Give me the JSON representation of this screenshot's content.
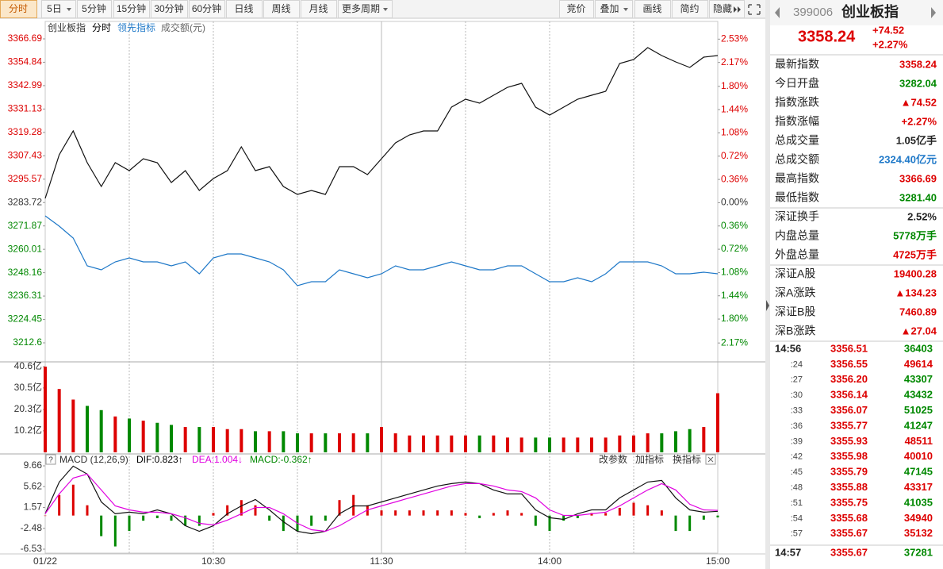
{
  "toolbar": {
    "left": [
      "分时",
      "5日",
      "5分钟",
      "15分钟",
      "30分钟",
      "60分钟",
      "日线",
      "周线",
      "月线",
      "更多周期"
    ],
    "right": [
      "竞价",
      "叠加",
      "画线",
      "简约",
      "隐藏"
    ]
  },
  "chart_header": {
    "period": "分时"
  },
  "chart_data": [
    {
      "type": "line",
      "series": [
        {
          "name": "创业板指",
          "color": "#111111",
          "values": [
            3285.83,
            3307.95,
            3320.02,
            3303.93,
            3291.86,
            3303.93,
            3299.91,
            3305.94,
            3303.93,
            3293.87,
            3299.91,
            3289.85,
            3295.89,
            3299.91,
            3311.98,
            3299.91,
            3301.92,
            3291.86,
            3287.84,
            3289.85,
            3287.84,
            3301.92,
            3301.92,
            3297.9,
            3305.94,
            3313.99,
            3318.01,
            3320.02,
            3320.02,
            3332.09,
            3336.12,
            3334.1,
            3338.13,
            3342.15,
            3344.16,
            3332.09,
            3328.07,
            3332.09,
            3336.12,
            3338.13,
            3340.14,
            3354.22,
            3356.23,
            3362.26,
            3358.24,
            3355.02,
            3352.21,
            3357.44,
            3358.24
          ]
        },
        {
          "name": "领先指标",
          "color": "#1e78c8",
          "values": [
            3276.98,
            3271.75,
            3265.71,
            3251.63,
            3249.62,
            3253.64,
            3255.66,
            3253.64,
            3253.64,
            3251.63,
            3253.64,
            3247.61,
            3255.66,
            3257.67,
            3257.67,
            3255.66,
            3253.64,
            3249.62,
            3241.57,
            3243.59,
            3243.59,
            3249.62,
            3247.61,
            3245.6,
            3247.61,
            3251.63,
            3249.62,
            3249.62,
            3251.63,
            3253.64,
            3251.63,
            3249.62,
            3249.62,
            3251.63,
            3251.63,
            3247.61,
            3243.59,
            3243.59,
            3245.6,
            3243.59,
            3247.61,
            3253.64,
            3253.64,
            3253.64,
            3251.63,
            3247.61,
            3247.61,
            3248.41,
            3247.61
          ]
        }
      ],
      "ylim": [
        3203.35,
        3369.5
      ],
      "yticks": [
        3366.69,
        3354.84,
        3342.99,
        3331.13,
        3319.28,
        3307.43,
        3295.57,
        3283.72,
        3271.87,
        3260.01,
        3248.16,
        3236.31,
        3224.45,
        3212.6
      ],
      "y2lim": [
        -2.45,
        2.62
      ],
      "y2ticks": [
        {
          "value": 2.53,
          "label": "2.53%"
        },
        {
          "value": 2.17,
          "label": "2.17%"
        },
        {
          "value": 1.8,
          "label": "1.80%"
        },
        {
          "value": 1.44,
          "label": "1.44%"
        },
        {
          "value": 1.08,
          "label": "1.08%"
        },
        {
          "value": 0.72,
          "label": "0.72%"
        },
        {
          "value": 0.36,
          "label": "0.36%"
        },
        {
          "value": 0.0,
          "label": "0.00%"
        },
        {
          "value": -0.36,
          "label": "0.36%"
        },
        {
          "value": -0.72,
          "label": "0.72%"
        },
        {
          "value": -1.08,
          "label": "1.08%"
        },
        {
          "value": -1.44,
          "label": "1.44%"
        },
        {
          "value": -1.8,
          "label": "1.80%"
        },
        {
          "value": -2.17,
          "label": "2.17%"
        }
      ],
      "up_color": "#dd0000",
      "down_color": "#008800"
    },
    {
      "type": "bar",
      "title": "成交额(元)",
      "values": [
        40.6,
        30,
        25,
        22,
        20,
        17,
        16,
        15,
        14,
        13,
        12,
        12,
        12,
        11,
        11,
        10,
        10,
        10,
        9,
        9,
        9,
        9,
        9,
        9,
        12,
        9,
        8,
        8,
        8,
        8,
        8,
        8,
        8,
        7,
        7,
        7,
        7,
        7,
        7,
        7,
        7,
        8,
        8,
        9,
        9,
        10,
        11,
        12,
        28
      ],
      "ylim": [
        0,
        42.1
      ],
      "yticks": [
        {
          "value": 40.6,
          "label": "40.6亿"
        },
        {
          "value": 30.5,
          "label": "30.5亿"
        },
        {
          "value": 20.3,
          "label": "20.3亿"
        },
        {
          "value": 10.2,
          "label": "10.2亿"
        }
      ],
      "up_color": "#dd0000",
      "down_color": "#008800"
    },
    {
      "type": "macd",
      "title": "MACD (12,26,9)",
      "categories": [
        "01/22",
        null,
        null,
        null,
        null,
        null,
        null,
        null,
        null,
        null,
        null,
        null,
        "10:30",
        null,
        null,
        null,
        null,
        null,
        null,
        null,
        null,
        null,
        null,
        null,
        "11:30",
        null,
        null,
        null,
        null,
        null,
        null,
        null,
        null,
        null,
        null,
        null,
        "14:00",
        null,
        null,
        null,
        null,
        null,
        null,
        null,
        null,
        null,
        null,
        null,
        "15:00"
      ],
      "series": [
        {
          "label": "DIF:0.823↑",
          "color": "#111111",
          "values": [
            0.34,
            6.51,
            9.6,
            8.06,
            2.65,
            0.34,
            0.65,
            0.34,
            1.11,
            0.34,
            -1.98,
            -3.06,
            -1.98,
            0.34,
            1.88,
            3.12,
            1.11,
            -1.2,
            -3.06,
            -3.52,
            -3.06,
            0.34,
            1.88,
            1.88,
            2.65,
            3.43,
            4.2,
            4.97,
            5.74,
            6.2,
            6.51,
            6.2,
            4.97,
            4.2,
            4.2,
            1.11,
            -0.43,
            -0.74,
            0.34,
            1.11,
            1.11,
            3.43,
            4.97,
            6.51,
            6.82,
            3.43,
            1.11,
            0.65,
            0.823
          ]
        },
        {
          "label": "DEA:1.004↓",
          "color": "#e000e0",
          "values": [
            0.34,
            4.2,
            7.28,
            8.06,
            4.97,
            1.88,
            1.11,
            0.65,
            0.65,
            0.34,
            -0.43,
            -1.51,
            -1.82,
            -0.89,
            0.34,
            1.57,
            1.57,
            0.34,
            -1.51,
            -2.75,
            -3.06,
            -1.98,
            -0.43,
            1.11,
            1.88,
            2.65,
            3.43,
            4.2,
            4.97,
            5.74,
            6.2,
            6.2,
            5.74,
            4.97,
            4.66,
            3.43,
            1.11,
            0.03,
            0.03,
            0.34,
            0.65,
            1.88,
            3.43,
            4.97,
            6.2,
            4.97,
            2.19,
            1.11,
            1.004
          ]
        },
        {
          "label": "MACD:-0.362↑",
          "color": "#008800",
          "values": [
            0,
            4,
            6,
            2,
            -4,
            -6,
            -3,
            -1,
            -0.5,
            -1,
            -2,
            -2,
            0.5,
            2,
            3,
            2,
            -1,
            -3,
            -3,
            -2,
            -1,
            3,
            4,
            2,
            1,
            1,
            1,
            1,
            1,
            1,
            0.5,
            -0.5,
            0.5,
            1,
            0.5,
            -2,
            -3,
            -1,
            -0.5,
            0.5,
            0.5,
            1.5,
            2.5,
            2,
            1,
            -3,
            -3,
            -0.8,
            -0.362
          ]
        }
      ],
      "ylim": [
        -7.3,
        11.51
      ],
      "yticks": [
        9.66,
        5.62,
        1.57,
        -2.48,
        -6.53
      ],
      "up_color": "#dd0000",
      "down_color": "#008800",
      "buttons": [
        "改参数",
        "加指标",
        "换指标"
      ]
    }
  ],
  "quote": {
    "code": "399006",
    "name": "创业板指",
    "price": "3358.24",
    "change": "+74.52",
    "change_pct": "+2.27%"
  },
  "stats": [
    {
      "label": "最新指数",
      "value": "3358.24",
      "color": "#dd0000"
    },
    {
      "label": "今日开盘",
      "value": "3282.04",
      "color": "#008800"
    },
    {
      "label": "指数涨跌",
      "value": "▲74.52",
      "color": "#dd0000"
    },
    {
      "label": "指数涨幅",
      "value": "+2.27%",
      "color": "#dd0000"
    },
    {
      "label": "总成交量",
      "value": "1.05亿手",
      "color": "#222222"
    },
    {
      "label": "总成交额",
      "value": "2324.40亿元",
      "color": "#1e78c8"
    },
    {
      "label": "最高指数",
      "value": "3366.69",
      "color": "#dd0000"
    },
    {
      "label": "最低指数",
      "value": "3281.40",
      "color": "#008800"
    },
    {
      "label": "深证换手",
      "value": "2.52%",
      "color": "#222222"
    },
    {
      "label": "内盘总量",
      "value": "5778万手",
      "color": "#008800"
    },
    {
      "label": "外盘总量",
      "value": "4725万手",
      "color": "#dd0000"
    },
    {
      "label": "深证A股",
      "value": "19400.28",
      "color": "#dd0000"
    },
    {
      "label": "深A涨跌",
      "value": "▲134.23",
      "color": "#dd0000"
    },
    {
      "label": "深证B股",
      "value": "7460.89",
      "color": "#dd0000"
    },
    {
      "label": "深B涨跌",
      "value": "▲27.04",
      "color": "#dd0000"
    }
  ],
  "trades": [
    {
      "time": "14:56",
      "price": "3356.51",
      "volume": "36403",
      "volume_color": "#008800"
    },
    {
      "time": ":24",
      "price": "3356.55",
      "volume": "49614",
      "volume_color": "#dd0000"
    },
    {
      "time": ":27",
      "price": "3356.20",
      "volume": "43307",
      "volume_color": "#008800"
    },
    {
      "time": ":30",
      "price": "3356.14",
      "volume": "43432",
      "volume_color": "#008800"
    },
    {
      "time": ":33",
      "price": "3356.07",
      "volume": "51025",
      "volume_color": "#008800"
    },
    {
      "time": ":36",
      "price": "3355.77",
      "volume": "41247",
      "volume_color": "#008800"
    },
    {
      "time": ":39",
      "price": "3355.93",
      "volume": "48511",
      "volume_color": "#dd0000"
    },
    {
      "time": ":42",
      "price": "3355.98",
      "volume": "40010",
      "volume_color": "#dd0000"
    },
    {
      "time": ":45",
      "price": "3355.79",
      "volume": "47145",
      "volume_color": "#008800"
    },
    {
      "time": ":48",
      "price": "3355.88",
      "volume": "43317",
      "volume_color": "#dd0000"
    },
    {
      "time": ":51",
      "price": "3355.75",
      "volume": "41035",
      "volume_color": "#008800"
    },
    {
      "time": ":54",
      "price": "3355.68",
      "volume": "34940",
      "volume_color": "#dd0000"
    },
    {
      "time": ":57",
      "price": "3355.67",
      "volume": "35132",
      "volume_color": "#dd0000"
    },
    {
      "time": "14:57",
      "price": "3355.67",
      "volume": "37281",
      "volume_color": "#008800"
    }
  ]
}
